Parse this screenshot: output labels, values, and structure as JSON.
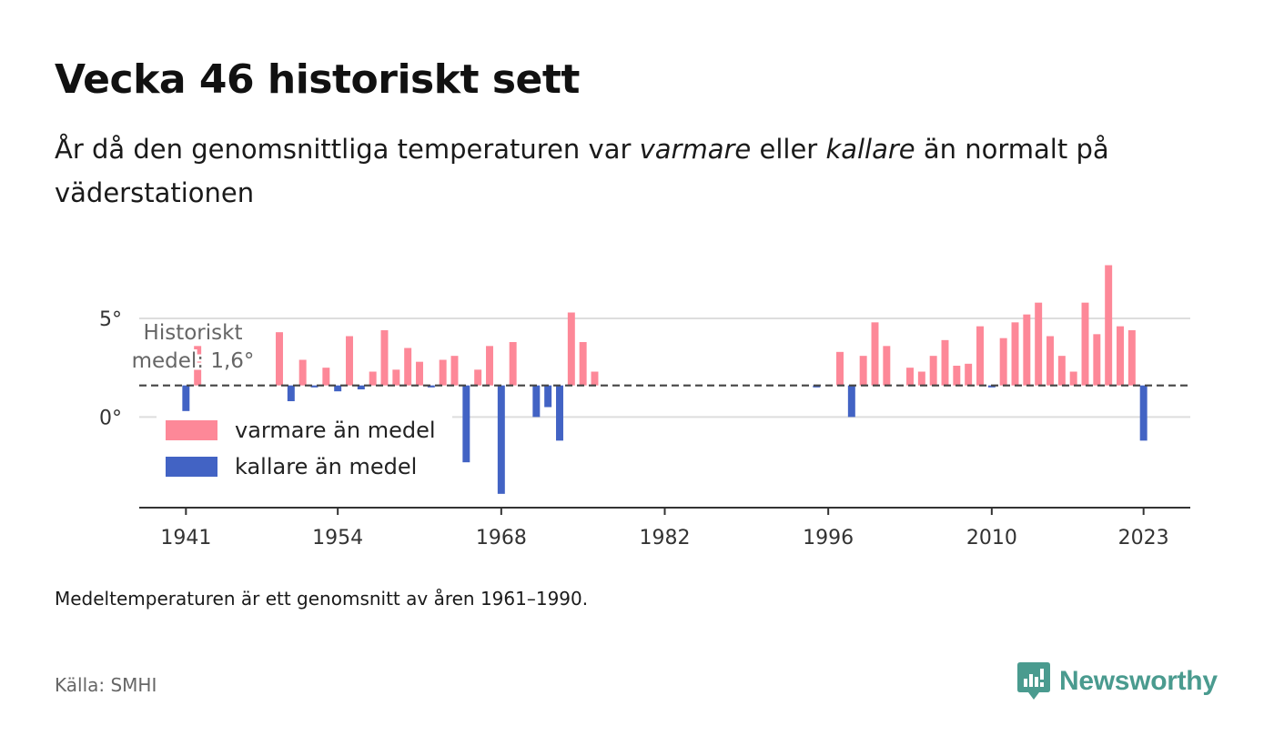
{
  "title": "Vecka 46 historiskt sett",
  "subtitle": {
    "part1": "År då den genomsnittliga temperaturen var ",
    "warm_word": "varmare",
    "part2": " eller ",
    "cold_word": "kallare",
    "part3": " än normalt på väderstationen"
  },
  "note": "Medeltemperaturen är ett genomsnitt av åren 1961–1990.",
  "source": "Källa: SMHI",
  "brand": {
    "name": "Newsworthy",
    "logo_icon": "newsworthy-logo-icon",
    "color": "#4a9b8f"
  },
  "colors": {
    "warm": "#fd8898",
    "cold": "#4263c4",
    "grid": "#dddddd",
    "mean_line": "#444444",
    "axis": "#333333"
  },
  "chart_data": {
    "type": "bar",
    "mean": 1.6,
    "mean_label_line1": "Historiskt",
    "mean_label_line2": "medel: 1,6°",
    "y_ticks": [
      {
        "value": 0,
        "label": "0°"
      },
      {
        "value": 5,
        "label": "5°"
      }
    ],
    "x_ticks": [
      {
        "year": 1941,
        "label": "1941"
      },
      {
        "year": 1954,
        "label": "1954"
      },
      {
        "year": 1968,
        "label": "1968"
      },
      {
        "year": 1982,
        "label": "1982"
      },
      {
        "year": 1996,
        "label": "1996"
      },
      {
        "year": 2010,
        "label": "2010"
      },
      {
        "year": 2023,
        "label": "2023"
      }
    ],
    "xlim": [
      1937,
      2027
    ],
    "ylim": [
      -4.6,
      8.0
    ],
    "grid": true,
    "legend": [
      {
        "key": "warm",
        "label": "varmare än medel"
      },
      {
        "key": "cold",
        "label": "kallare än medel"
      }
    ],
    "legend_position": "bottom-left",
    "x": [
      1941,
      1942,
      1949,
      1950,
      1951,
      1952,
      1953,
      1954,
      1955,
      1956,
      1957,
      1958,
      1959,
      1960,
      1961,
      1962,
      1963,
      1964,
      1965,
      1966,
      1967,
      1968,
      1969,
      1971,
      1972,
      1973,
      1974,
      1975,
      1976,
      1995,
      1997,
      1998,
      1999,
      2000,
      2001,
      2003,
      2004,
      2005,
      2006,
      2007,
      2008,
      2009,
      2010,
      2011,
      2012,
      2013,
      2014,
      2015,
      2016,
      2017,
      2018,
      2019,
      2020,
      2021,
      2022,
      2023
    ],
    "values": [
      0.3,
      3.6,
      4.3,
      0.8,
      2.9,
      1.5,
      2.5,
      1.3,
      4.1,
      1.4,
      2.3,
      4.4,
      2.4,
      3.5,
      2.8,
      1.5,
      2.9,
      3.1,
      -2.3,
      2.4,
      3.6,
      -3.9,
      3.8,
      0.0,
      0.5,
      -1.2,
      5.3,
      3.8,
      2.3,
      1.5,
      3.3,
      0.0,
      3.1,
      4.8,
      3.6,
      2.5,
      2.3,
      3.1,
      3.9,
      2.6,
      2.7,
      4.6,
      1.5,
      4.0,
      4.8,
      5.2,
      5.8,
      4.1,
      3.1,
      2.3,
      5.8,
      4.2,
      7.7,
      4.6,
      4.4,
      -1.2
    ]
  }
}
